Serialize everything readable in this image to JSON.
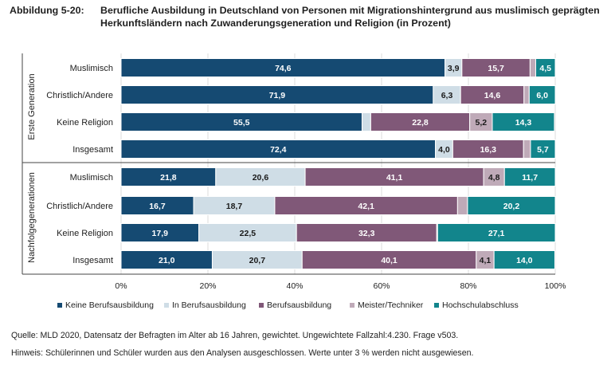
{
  "title": {
    "label": "Abbildung 5-20:",
    "text": "Berufliche Ausbildung in Deutschland von Personen mit Migrationshintergrund aus muslimisch geprägten Herkunftsländern nach Zuwanderungsgeneration und Religion (in Prozent)"
  },
  "colors": {
    "Keine Berufsausbildung": "#154a72",
    "In Berufsausbildung": "#cfdde6",
    "Berufsausbildung": "#805878",
    "Meister/Techniker": "#bfaab8",
    "Hochschulabschluss": "#12858c"
  },
  "chart_data": {
    "type": "bar",
    "orientation": "horizontal",
    "stacked": true,
    "xlim": [
      0,
      100
    ],
    "x_ticks": [
      "0%",
      "20%",
      "40%",
      "60%",
      "80%",
      "100%"
    ],
    "groups": [
      {
        "name": "Erste Generation",
        "categories": [
          "Muslimisch",
          "Christlich/Andere",
          "Keine Religion",
          "Insgesamt"
        ]
      },
      {
        "name": "Nachfolgegenerationen",
        "categories": [
          "Muslimisch",
          "Christlich/Andere",
          "Keine Religion",
          "Insgesamt"
        ]
      }
    ],
    "series": [
      {
        "name": "Keine Berufsausbildung",
        "values": [
          74.6,
          71.9,
          55.5,
          72.4,
          21.8,
          16.7,
          17.9,
          21.0
        ]
      },
      {
        "name": "In Berufsausbildung",
        "values": [
          3.9,
          6.3,
          2.0,
          4.0,
          20.6,
          18.7,
          22.5,
          20.7
        ]
      },
      {
        "name": "Berufsausbildung",
        "values": [
          15.7,
          14.6,
          22.8,
          16.3,
          41.1,
          42.1,
          32.3,
          40.1
        ]
      },
      {
        "name": "Meister/Techniker",
        "values": [
          1.3,
          1.2,
          5.2,
          1.6,
          4.8,
          2.3,
          0.2,
          4.1
        ]
      },
      {
        "name": "Hochschulabschluss",
        "values": [
          4.5,
          6.0,
          14.3,
          5.7,
          11.7,
          20.2,
          27.1,
          14.0
        ]
      }
    ],
    "labels": [
      [
        "74,6",
        "3,9",
        "15,7",
        "",
        "4,5"
      ],
      [
        "71,9",
        "6,3",
        "14,6",
        "",
        "6,0"
      ],
      [
        "55,5",
        "",
        "22,8",
        "5,2",
        "14,3"
      ],
      [
        "72,4",
        "4,0",
        "16,3",
        "",
        "5,7"
      ],
      [
        "21,8",
        "20,6",
        "41,1",
        "4,8",
        "11,7"
      ],
      [
        "16,7",
        "18,7",
        "42,1",
        "",
        "20,2"
      ],
      [
        "17,9",
        "22,5",
        "32,3",
        "",
        "27,1"
      ],
      [
        "21,0",
        "20,7",
        "40,1",
        "4,1",
        "14,0"
      ]
    ]
  },
  "footer": {
    "source": "Quelle: MLD 2020, Datensatz der Befragten im Alter ab 16 Jahren, gewichtet. Ungewichtete Fallzahl:4.230. Frage v503.",
    "note": "Hinweis: Schülerinnen und Schüler wurden aus den Analysen ausgeschlossen. Werte unter 3 % werden nicht ausgewiesen."
  }
}
